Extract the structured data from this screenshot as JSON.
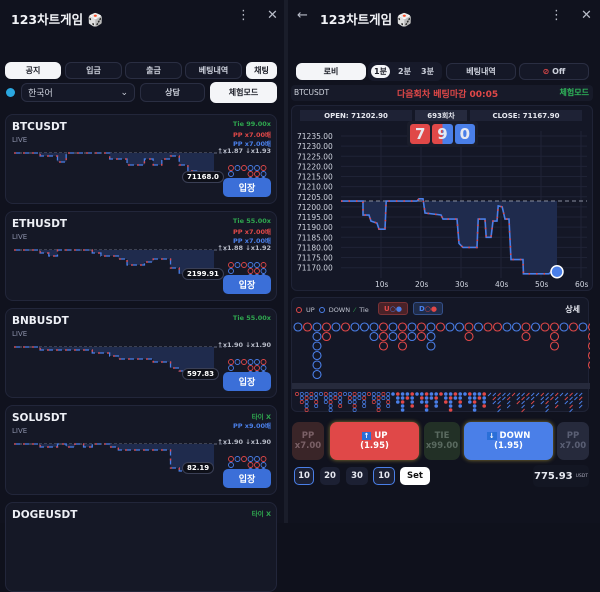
{
  "app_title": "123차트게임",
  "left": {
    "tabs": [
      "공지",
      "입금",
      "출금",
      "베팅내역",
      "채팅"
    ],
    "language": "한국어",
    "consult": "상담",
    "demo_mode": "체험모드",
    "enter_label": "입장",
    "cards": [
      {
        "symbol": "BTCUSDT",
        "status": "LIVE",
        "price": "71168.0",
        "lines": [
          {
            "text": "Tie 99.00x",
            "color": "#2fa84f"
          },
          {
            "text": "PP x7.00배",
            "color": "#e04848"
          },
          {
            "text": "PP x7.00배",
            "color": "#4a7fe8"
          },
          {
            "text": "↑x1.87 ↓x1.93",
            "color": "#b8bcc8"
          }
        ],
        "series": [
          0,
          0,
          0,
          -1,
          -1,
          -3,
          0,
          0,
          0,
          0,
          0,
          -2,
          -2,
          -4,
          -4,
          -2,
          -4,
          -2,
          -1,
          -4,
          -6,
          -8,
          -8,
          -8
        ]
      },
      {
        "symbol": "ETHUSDT",
        "status": "LIVE",
        "price": "2199.91",
        "lines": [
          {
            "text": "Tie 55.00x",
            "color": "#2fa84f"
          },
          {
            "text": "PP x7.00배",
            "color": "#e04848"
          },
          {
            "text": "PP x7.00배",
            "color": "#4a7fe8"
          },
          {
            "text": "↑x1.88 ↓x1.92",
            "color": "#b8bcc8"
          }
        ],
        "series": [
          0,
          0,
          0,
          -1,
          -2,
          0,
          0,
          0,
          0,
          -1,
          -2,
          -2,
          -3,
          -5,
          -5,
          -4,
          -3,
          -3,
          -6,
          -8,
          -8,
          -8,
          -8,
          -8
        ]
      },
      {
        "symbol": "BNBUSDT",
        "status": "LIVE",
        "price": "597.83",
        "lines": [
          {
            "text": "Tie 55.00x",
            "color": "#2fa84f"
          },
          {
            "text": "",
            "color": "#e04848"
          },
          {
            "text": "",
            "color": "#4a7fe8"
          },
          {
            "text": "↑x1.90 ↓x1.90",
            "color": "#b8bcc8"
          }
        ],
        "series": [
          0,
          0,
          0,
          -1,
          -1,
          -1,
          -1,
          -1,
          -1,
          -2,
          -2,
          -3,
          -4,
          -4,
          -4,
          -4,
          -5,
          -5,
          -7,
          -8,
          -8,
          -8,
          -9,
          -9
        ]
      },
      {
        "symbol": "SOLUSDT",
        "status": "LIVE",
        "price": "82.19",
        "lines": [
          {
            "text": "타이 X",
            "color": "#2fa84f"
          },
          {
            "text": "PP x9.00배",
            "color": "#4a7fe8"
          },
          {
            "text": "",
            "color": "#4a7fe8"
          },
          {
            "text": "↑x1.90 ↓x1.90",
            "color": "#b8bcc8"
          }
        ],
        "series": [
          0,
          0,
          0,
          -1,
          -1,
          0,
          -1,
          0,
          -1,
          0,
          0,
          -1,
          -2,
          -2,
          -2,
          -2,
          -2,
          -2,
          -8,
          -9,
          -9,
          -9,
          -8,
          -8
        ]
      },
      {
        "symbol": "DOGEUSDT",
        "status": "",
        "price": "",
        "lines": [
          {
            "text": "타이 X",
            "color": "#2fa84f"
          }
        ],
        "series": []
      }
    ]
  },
  "right": {
    "lobby": "로비",
    "periods": [
      "1분",
      "2분",
      "3분"
    ],
    "active_period": "1분",
    "bet_history": "베팅내역",
    "sound": "Off",
    "symbol": "BTCUSDT",
    "countdown": "다음회차 베팅마감 00:05",
    "mode": "체험모드",
    "open": "OPEN: 71202.90",
    "round": "693회차",
    "close": "CLOSE: 71167.90",
    "digits": [
      "7",
      "9",
      "0"
    ],
    "legend": {
      "up": "UP",
      "down": "DOWN",
      "tie": "Tie",
      "u_btn": "U",
      "d_btn": "D",
      "detail": "상세"
    },
    "bets": {
      "pp_left": {
        "label": "PP",
        "odds": "x7.00"
      },
      "up": {
        "label": "UP",
        "odds": "(1.95)"
      },
      "tie": {
        "label": "TIE",
        "odds": "x99.00"
      },
      "down": {
        "label": "DOWN",
        "odds": "(1.95)"
      },
      "pp_right": {
        "label": "PP",
        "odds": "x7.00"
      }
    },
    "chips": [
      "10",
      "20",
      "30",
      "10"
    ],
    "set": "Set",
    "balance": "775.93",
    "currency": "USDT",
    "roadmap": [
      "D",
      "U",
      "DDDDDDD",
      "UU",
      "D",
      "U",
      "D",
      "D",
      "DD",
      "UUU",
      "DD",
      "UUU",
      "DD",
      "UU",
      "DDD",
      "U",
      "D",
      "D",
      "UU",
      "D",
      "U",
      "U",
      "D",
      "D",
      "UU",
      "D",
      "U",
      "UUU",
      "D",
      "U",
      "D",
      "UUUUU",
      "D",
      "UUU",
      "D"
    ]
  },
  "chart_data": {
    "type": "line",
    "x_ticks": [
      "10s",
      "20s",
      "30s",
      "40s",
      "50s",
      "60s"
    ],
    "y_ticks": [
      "71235.00",
      "71230.00",
      "71225.00",
      "71220.00",
      "71215.00",
      "71210.00",
      "71205.00",
      "71200.00",
      "71195.00",
      "71190.00",
      "71185.00",
      "71180.00",
      "71175.00",
      "71170.00"
    ],
    "xlim": [
      0,
      60
    ],
    "ylim": [
      71167,
      71237
    ],
    "open_line": 71202.9,
    "points": [
      [
        0,
        71202.9
      ],
      [
        5.5,
        71202.9
      ],
      [
        5.5,
        71196
      ],
      [
        7,
        71196
      ],
      [
        7.5,
        71193
      ],
      [
        9,
        71192
      ],
      [
        9.5,
        71189
      ],
      [
        11,
        71189
      ],
      [
        11.3,
        71202.9
      ],
      [
        19,
        71202.9
      ],
      [
        19.5,
        71204
      ],
      [
        20.5,
        71204
      ],
      [
        21,
        71197
      ],
      [
        25,
        71196
      ],
      [
        25.5,
        71194
      ],
      [
        29,
        71194
      ],
      [
        29.5,
        71182
      ],
      [
        30.5,
        71180
      ],
      [
        34,
        71180
      ],
      [
        34.3,
        71194
      ],
      [
        36,
        71194
      ],
      [
        36.3,
        71185
      ],
      [
        37.5,
        71185
      ],
      [
        38,
        71193
      ],
      [
        39,
        71193
      ],
      [
        39.3,
        71200.5
      ],
      [
        40.3,
        71200
      ],
      [
        41,
        71194
      ],
      [
        42,
        71194
      ],
      [
        42.5,
        71174
      ],
      [
        45.5,
        71174
      ],
      [
        45.6,
        71167
      ],
      [
        52,
        71167
      ],
      [
        52.5,
        71168
      ],
      [
        54,
        71168
      ]
    ],
    "colors": {
      "up": "#e04848",
      "down": "#4a7fe8",
      "fill": "#1f2b4d"
    }
  }
}
